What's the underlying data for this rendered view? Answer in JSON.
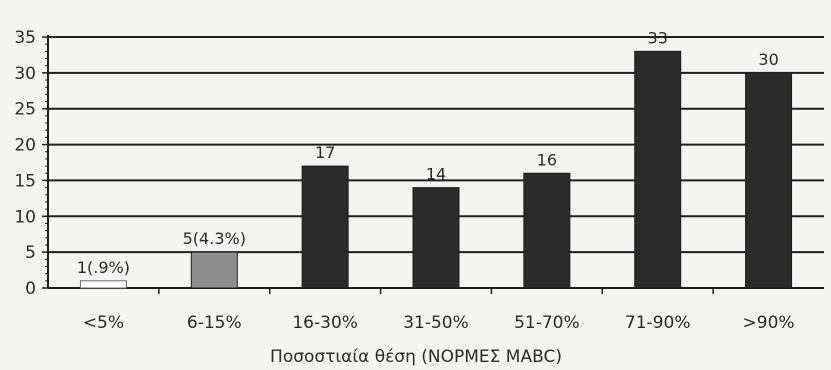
{
  "chart_data": {
    "type": "bar",
    "title": "",
    "xlabel": "Ποσοστιαία θέση (ΝΟΡΜΕΣ MABC)",
    "ylabel": "",
    "ylim": [
      0,
      35
    ],
    "yticks": [
      0,
      5,
      10,
      15,
      20,
      25,
      30,
      35
    ],
    "grid": true,
    "categories": [
      "<5%",
      "6-15%",
      "16-30%",
      "31-50%",
      "51-70%",
      "71-90%",
      ">90%"
    ],
    "values": [
      1,
      5,
      17,
      14,
      16,
      33,
      30
    ],
    "data_labels": [
      "1(.9%)",
      "5(4.3%)",
      "17",
      "14",
      "16",
      "33",
      "30"
    ],
    "bar_colors": [
      "#ffffff",
      "#8e8e8e",
      "#2b2b2b",
      "#2b2b2b",
      "#2b2b2b",
      "#2b2b2b",
      "#2b2b2b"
    ]
  }
}
